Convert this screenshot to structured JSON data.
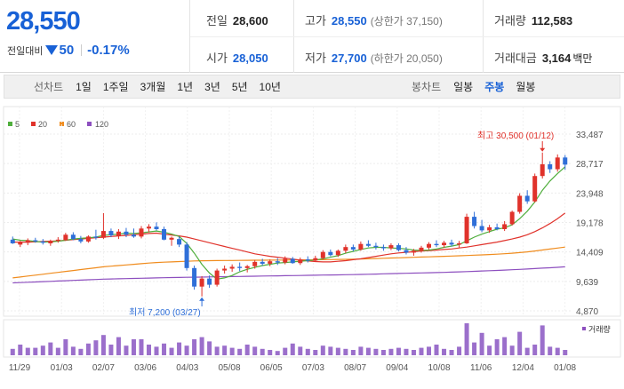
{
  "quote": {
    "price": "28,550",
    "change_label": "전일대비",
    "change": "50",
    "change_pct": "-0.17%",
    "prev_close": {
      "label": "전일",
      "value": "28,600"
    },
    "high": {
      "label": "고가",
      "value": "28,550",
      "sub": "(상한가 37,150)"
    },
    "volume": {
      "label": "거래량",
      "value": "112,583"
    },
    "open": {
      "label": "시가",
      "value": "28,050"
    },
    "low": {
      "label": "저가",
      "value": "27,700",
      "sub": "(하한가 20,050)"
    },
    "amount": {
      "label": "거래대금",
      "value": "3,164",
      "unit": "백만"
    }
  },
  "toolbar": {
    "line_chart_label": "선차트",
    "periods": [
      "1일",
      "1주일",
      "3개월",
      "1년",
      "3년",
      "5년",
      "10년"
    ],
    "candle_chart_label": "봉차트",
    "candle_types": [
      "일봉",
      "주봉",
      "월봉"
    ],
    "active_candle": "주봉"
  },
  "colors": {
    "up": "#e0322b",
    "down": "#2f6fd8",
    "ma5": "#4fae3c",
    "ma20": "#e0322b",
    "ma60": "#f08c1e",
    "ma120": "#8d4fbf",
    "price_blue": "#1861d6"
  },
  "chart_data": {
    "type": "candlestick",
    "legend": [
      "5",
      "20",
      "60",
      "120"
    ],
    "y_ticks": [
      "33,487",
      "28,717",
      "23,948",
      "19,178",
      "14,409",
      "9,639",
      "4,870"
    ],
    "ylim": [
      4870,
      33487
    ],
    "x_ticks": [
      "11/29",
      "01/03",
      "02/07",
      "03/06",
      "04/03",
      "05/08",
      "06/05",
      "07/03",
      "08/07",
      "09/04",
      "10/08",
      "11/06",
      "12/04",
      "01/08"
    ],
    "annotations": {
      "high": {
        "label": "최고",
        "value": "30,500",
        "date": "(01/12)"
      },
      "low": {
        "label": "최저",
        "value": "7,200",
        "date": "(03/27)"
      }
    },
    "volume_label": "거래량",
    "candles": [
      [
        16400,
        16900,
        15700,
        15800
      ],
      [
        15600,
        16200,
        15200,
        16000
      ],
      [
        15900,
        16600,
        15500,
        16300
      ],
      [
        16300,
        16700,
        15900,
        16100
      ],
      [
        16100,
        16500,
        15600,
        15900
      ],
      [
        15800,
        16400,
        15400,
        16200
      ],
      [
        16200,
        16800,
        15900,
        16400
      ],
      [
        16300,
        17500,
        16200,
        17200
      ],
      [
        17200,
        17600,
        16300,
        16500
      ],
      [
        16500,
        17000,
        15800,
        16100
      ],
      [
        16100,
        17100,
        15900,
        16900
      ],
      [
        16900,
        18000,
        16400,
        16700
      ],
      [
        16700,
        20700,
        16500,
        17800
      ],
      [
        17800,
        18200,
        16800,
        17100
      ],
      [
        17000,
        18100,
        16500,
        17700
      ],
      [
        17700,
        18300,
        16800,
        17200
      ],
      [
        17200,
        18200,
        16700,
        16900
      ],
      [
        16900,
        18600,
        16600,
        18200
      ],
      [
        18200,
        18900,
        17600,
        18500
      ],
      [
        18500,
        19200,
        17900,
        18100
      ],
      [
        18100,
        18500,
        16300,
        16400
      ],
      [
        16400,
        16900,
        15400,
        16700
      ],
      [
        16500,
        16900,
        15200,
        15600
      ],
      [
        15600,
        16000,
        11400,
        11800
      ],
      [
        11800,
        12200,
        8300,
        8800
      ],
      [
        8800,
        10500,
        7200,
        10100
      ],
      [
        10100,
        10600,
        8600,
        9100
      ],
      [
        9100,
        11700,
        8800,
        11400
      ],
      [
        11400,
        12200,
        10900,
        11700
      ],
      [
        11700,
        12400,
        11200,
        12000
      ],
      [
        12000,
        12700,
        11300,
        11800
      ],
      [
        11800,
        12300,
        11100,
        12100
      ],
      [
        12100,
        13100,
        11700,
        12800
      ],
      [
        12800,
        13300,
        12200,
        12500
      ],
      [
        12500,
        13200,
        12100,
        12900
      ],
      [
        12900,
        13400,
        12300,
        12700
      ],
      [
        12700,
        13700,
        12400,
        13300
      ],
      [
        13300,
        13600,
        12500,
        12600
      ],
      [
        12600,
        13500,
        12300,
        13200
      ],
      [
        13200,
        13700,
        12700,
        13000
      ],
      [
        13000,
        13800,
        12900,
        13400
      ],
      [
        13400,
        14700,
        13200,
        14400
      ],
      [
        14400,
        14800,
        13700,
        13900
      ],
      [
        13900,
        14800,
        13600,
        14600
      ],
      [
        14600,
        15600,
        14200,
        15200
      ],
      [
        15200,
        15600,
        14500,
        14800
      ],
      [
        14800,
        16100,
        14600,
        15700
      ],
      [
        15700,
        16300,
        15200,
        15400
      ],
      [
        15400,
        15900,
        14800,
        15200
      ],
      [
        15200,
        15600,
        14600,
        15000
      ],
      [
        15000,
        15800,
        14700,
        15500
      ],
      [
        15500,
        15800,
        14500,
        14700
      ],
      [
        14700,
        15200,
        14000,
        14300
      ],
      [
        14300,
        14900,
        13800,
        14600
      ],
      [
        14600,
        15400,
        14300,
        15100
      ],
      [
        15100,
        16000,
        14800,
        15700
      ],
      [
        15700,
        16300,
        15200,
        15500
      ],
      [
        15500,
        16200,
        15100,
        15900
      ],
      [
        15900,
        16400,
        15300,
        15600
      ],
      [
        15600,
        16200,
        15100,
        15800
      ],
      [
        15800,
        20600,
        15700,
        20100
      ],
      [
        20100,
        20900,
        18200,
        18600
      ],
      [
        18600,
        19600,
        17600,
        17900
      ],
      [
        17900,
        18800,
        17500,
        18400
      ],
      [
        18400,
        19000,
        17900,
        18100
      ],
      [
        18100,
        19400,
        17800,
        18900
      ],
      [
        18900,
        21100,
        18700,
        20900
      ],
      [
        20900,
        23900,
        20600,
        23500
      ],
      [
        23500,
        24400,
        22200,
        22600
      ],
      [
        22600,
        27100,
        22400,
        26700
      ],
      [
        26700,
        30500,
        26300,
        28600
      ],
      [
        28600,
        29100,
        27200,
        27800
      ],
      [
        27800,
        30200,
        27400,
        29700
      ],
      [
        29700,
        30100,
        27700,
        28550
      ]
    ],
    "volumes": [
      12,
      20,
      14,
      14,
      18,
      24,
      14,
      30,
      16,
      12,
      22,
      28,
      38,
      20,
      34,
      18,
      30,
      30,
      20,
      16,
      22,
      14,
      24,
      18,
      30,
      34,
      26,
      16,
      18,
      14,
      12,
      20,
      16,
      12,
      10,
      8,
      14,
      22,
      16,
      12,
      10,
      18,
      16,
      14,
      12,
      10,
      16,
      14,
      12,
      10,
      12,
      14,
      12,
      10,
      14,
      16,
      20,
      12,
      10,
      16,
      60,
      24,
      42,
      18,
      30,
      34,
      18,
      44,
      14,
      20,
      56,
      16,
      14,
      10
    ],
    "ma5": [
      16500,
      16300,
      16250,
      16100,
      16000,
      16050,
      16150,
      16300,
      16500,
      16600,
      16700,
      16800,
      17100,
      17200,
      17300,
      17450,
      17400,
      17500,
      17650,
      17800,
      17600,
      17300,
      16900,
      15800,
      14200,
      12400,
      11000,
      10000,
      10200,
      10600,
      11200,
      11600,
      11900,
      12200,
      12400,
      12600,
      12700,
      12800,
      12900,
      13000,
      13100,
      13300,
      13550,
      13800,
      14200,
      14500,
      14800,
      15050,
      15150,
      15150,
      15050,
      15000,
      14900,
      14700,
      14650,
      14700,
      14900,
      15150,
      15350,
      15600,
      16200,
      16800,
      17300,
      17700,
      18100,
      18300,
      18800,
      19800,
      21000,
      22500,
      24400,
      25900,
      27100,
      28200
    ],
    "ma20": [
      16000,
      16000,
      16000,
      16050,
      16100,
      16150,
      16200,
      16300,
      16400,
      16500,
      16600,
      16700,
      16800,
      16900,
      17000,
      17100,
      17200,
      17300,
      17400,
      17450,
      17300,
      17150,
      17000,
      16800,
      16500,
      16200,
      15900,
      15600,
      15300,
      15000,
      14700,
      14400,
      14100,
      13900,
      13700,
      13550,
      13400,
      13250,
      13100,
      12950,
      12850,
      12800,
      12800,
      12900,
      13000,
      13150,
      13300,
      13500,
      13700,
      13900,
      14100,
      14250,
      14350,
      14450,
      14550,
      14600,
      14700,
      14800,
      14900,
      15050,
      15200,
      15400,
      15600,
      15800,
      16000,
      16250,
      16500,
      16800,
      17200,
      17700,
      18300,
      19000,
      19800,
      20700
    ],
    "ma60": [
      10200,
      10350,
      10500,
      10650,
      10800,
      10950,
      11100,
      11250,
      11400,
      11550,
      11700,
      11850,
      12000,
      12100,
      12200,
      12300,
      12400,
      12500,
      12600,
      12700,
      12750,
      12800,
      12850,
      12900,
      12950,
      12980,
      13000,
      13010,
      13020,
      13030,
      13040,
      13050,
      13060,
      13070,
      13080,
      13090,
      13100,
      13110,
      13120,
      13130,
      13140,
      13150,
      13170,
      13190,
      13210,
      13240,
      13270,
      13300,
      13340,
      13380,
      13420,
      13460,
      13500,
      13540,
      13580,
      13620,
      13660,
      13700,
      13740,
      13780,
      13830,
      13880,
      13930,
      13990,
      14050,
      14120,
      14200,
      14300,
      14420,
      14560,
      14720,
      14880,
      15040,
      15200
    ],
    "ma120": [
      9400,
      9450,
      9500,
      9550,
      9600,
      9650,
      9700,
      9750,
      9800,
      9850,
      9900,
      9950,
      10000,
      10030,
      10060,
      10090,
      10120,
      10150,
      10180,
      10210,
      10240,
      10260,
      10280,
      10300,
      10320,
      10340,
      10360,
      10380,
      10400,
      10420,
      10440,
      10460,
      10480,
      10500,
      10520,
      10540,
      10560,
      10580,
      10600,
      10620,
      10640,
      10660,
      10680,
      10700,
      10720,
      10740,
      10770,
      10800,
      10830,
      10860,
      10890,
      10920,
      10950,
      10980,
      11010,
      11040,
      11070,
      11100,
      11140,
      11180,
      11220,
      11270,
      11320,
      11370,
      11420,
      11470,
      11530,
      11590,
      11650,
      11710,
      11780,
      11850,
      11920,
      12000
    ]
  }
}
